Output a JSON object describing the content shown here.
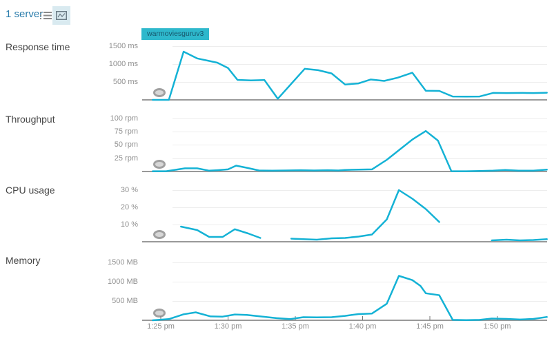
{
  "header": {
    "title": "1 server",
    "view_toggles": [
      {
        "name": "list-view",
        "selected": false
      },
      {
        "name": "chart-view",
        "selected": true
      }
    ]
  },
  "legend": {
    "label": "warmoviesguruv3"
  },
  "colors": {
    "series_line": "#14b2d5",
    "badge_bg": "#2eb8cc",
    "badge_text": "#17566b",
    "gridline": "#ededed",
    "baseline": "#999999",
    "tick_mark": "#777777",
    "header_link": "#2a7cab",
    "selected_tile_bg": "#d9eaf0"
  },
  "x_axis": {
    "labels": [
      "1:25 pm",
      "1:30 pm",
      "1:35 pm",
      "1:40 pm",
      "1:45 pm",
      "1:50 pm"
    ],
    "tick_interval_minutes": 5,
    "range_minutes": [
      -0.6,
      28.7
    ]
  },
  "chart_data": [
    {
      "type": "line",
      "title": "Response time",
      "unit": "ms",
      "ylim": [
        0,
        1600
      ],
      "yticks": [
        {
          "value": 500,
          "label": "500 ms"
        },
        {
          "value": 1000,
          "label": "1000 ms"
        },
        {
          "value": 1500,
          "label": "1500 ms"
        }
      ],
      "series": [
        {
          "name": "warmoviesguruv3",
          "segments": [
            [
              [
                -0.6,
                0
              ],
              [
                0.6,
                0
              ],
              [
                1.7,
                1350
              ],
              [
                2.7,
                1160
              ],
              [
                3.6,
                1090
              ],
              [
                4.2,
                1040
              ],
              [
                5.0,
                890
              ],
              [
                5.7,
                560
              ],
              [
                6.7,
                545
              ],
              [
                7.7,
                555
              ],
              [
                8.7,
                30
              ],
              [
                10.7,
                870
              ],
              [
                11.7,
                830
              ],
              [
                12.7,
                740
              ],
              [
                13.7,
                430
              ],
              [
                14.7,
                460
              ],
              [
                15.6,
                570
              ],
              [
                16.6,
                530
              ],
              [
                17.6,
                620
              ],
              [
                18.7,
                760
              ],
              [
                19.7,
                255
              ],
              [
                20.7,
                250
              ],
              [
                21.7,
                95
              ],
              [
                22.7,
                90
              ],
              [
                23.7,
                95
              ],
              [
                24.7,
                195
              ],
              [
                25.7,
                190
              ],
              [
                26.9,
                195
              ],
              [
                27.7,
                190
              ],
              [
                28.7,
                200
              ]
            ]
          ]
        }
      ]
    },
    {
      "type": "line",
      "title": "Throughput",
      "unit": "rpm",
      "ylim": [
        0,
        106
      ],
      "yticks": [
        {
          "value": 25,
          "label": "25 rpm"
        },
        {
          "value": 50,
          "label": "50 rpm"
        },
        {
          "value": 75,
          "label": "75 rpm"
        },
        {
          "value": 100,
          "label": "100 rpm"
        }
      ],
      "series": [
        {
          "name": "warmoviesguruv3",
          "segments": [
            [
              [
                -0.6,
                0.5
              ],
              [
                0.4,
                0.5
              ],
              [
                1.3,
                4
              ],
              [
                1.8,
                6
              ],
              [
                2.7,
                6
              ],
              [
                3.6,
                1.5
              ],
              [
                4.2,
                2.5
              ],
              [
                5.0,
                4
              ],
              [
                5.6,
                11
              ],
              [
                6.4,
                7
              ],
              [
                7.3,
                2
              ],
              [
                8.3,
                1.5
              ],
              [
                9.3,
                2
              ],
              [
                10.4,
                2.5
              ],
              [
                11.4,
                2
              ],
              [
                12.4,
                2.5
              ],
              [
                13.2,
                2
              ],
              [
                13.7,
                3
              ],
              [
                14.7,
                3.5
              ],
              [
                15.7,
                4
              ],
              [
                16.8,
                22
              ],
              [
                17.8,
                42
              ],
              [
                18.7,
                60
              ],
              [
                19.7,
                76
              ],
              [
                20.6,
                58
              ],
              [
                21.6,
                0.5
              ],
              [
                22.7,
                0.5
              ],
              [
                23.7,
                1
              ],
              [
                24.7,
                1.5
              ],
              [
                25.6,
                3
              ],
              [
                26.6,
                1.5
              ],
              [
                27.7,
                1.5
              ],
              [
                28.7,
                3.5
              ]
            ]
          ]
        }
      ]
    },
    {
      "type": "line",
      "title": "CPU usage",
      "unit": "%",
      "ylim": [
        0,
        32.4
      ],
      "yticks": [
        {
          "value": 10,
          "label": "10 %"
        },
        {
          "value": 20,
          "label": "20 %"
        },
        {
          "value": 30,
          "label": "30 %"
        }
      ],
      "series": [
        {
          "name": "warmoviesguruv3",
          "segments": [
            [
              [
                1.5,
                8.8
              ],
              [
                2.7,
                6.8
              ],
              [
                3.6,
                2.8
              ],
              [
                4.6,
                2.8
              ],
              [
                5.5,
                7.3
              ],
              [
                6.5,
                4.8
              ],
              [
                7.4,
                2.2
              ]
            ],
            [
              [
                9.7,
                1.8
              ],
              [
                10.6,
                1.5
              ],
              [
                11.6,
                1.2
              ],
              [
                12.7,
                2
              ],
              [
                13.7,
                2.2
              ],
              [
                14.7,
                3
              ],
              [
                15.7,
                4.2
              ],
              [
                16.8,
                13
              ],
              [
                17.7,
                30
              ],
              [
                18.7,
                25
              ],
              [
                19.7,
                19
              ],
              [
                20.7,
                11.5
              ]
            ],
            [
              [
                24.6,
                0.8
              ],
              [
                25.7,
                1.2
              ],
              [
                26.7,
                0.8
              ],
              [
                27.7,
                1
              ],
              [
                28.7,
                1.5
              ]
            ]
          ]
        }
      ]
    },
    {
      "type": "line",
      "title": "Memory",
      "unit": "MB",
      "ylim": [
        0,
        1516
      ],
      "yticks": [
        {
          "value": 500,
          "label": "500 MB"
        },
        {
          "value": 1000,
          "label": "1000 MB"
        },
        {
          "value": 1500,
          "label": "1500 MB"
        }
      ],
      "series": [
        {
          "name": "warmoviesguruv3",
          "segments": [
            [
              [
                -0.6,
                0
              ],
              [
                0.6,
                30
              ],
              [
                1.7,
                155
              ],
              [
                2.6,
                205
              ],
              [
                3.7,
                100
              ],
              [
                4.6,
                95
              ],
              [
                5.5,
                150
              ],
              [
                6.4,
                140
              ],
              [
                7.4,
                100
              ],
              [
                8.6,
                55
              ],
              [
                9.6,
                30
              ],
              [
                10.6,
                80
              ],
              [
                11.6,
                75
              ],
              [
                12.7,
                80
              ],
              [
                13.7,
                115
              ],
              [
                14.7,
                160
              ],
              [
                15.7,
                175
              ],
              [
                16.8,
                430
              ],
              [
                17.7,
                1150
              ],
              [
                18.7,
                1040
              ],
              [
                19.3,
                890
              ],
              [
                19.7,
                700
              ],
              [
                20.7,
                650
              ],
              [
                21.7,
                10
              ],
              [
                22.7,
                5
              ],
              [
                23.7,
                10
              ],
              [
                24.6,
                45
              ],
              [
                25.7,
                35
              ],
              [
                26.7,
                20
              ],
              [
                27.7,
                35
              ],
              [
                28.7,
                85
              ]
            ]
          ]
        }
      ]
    }
  ]
}
